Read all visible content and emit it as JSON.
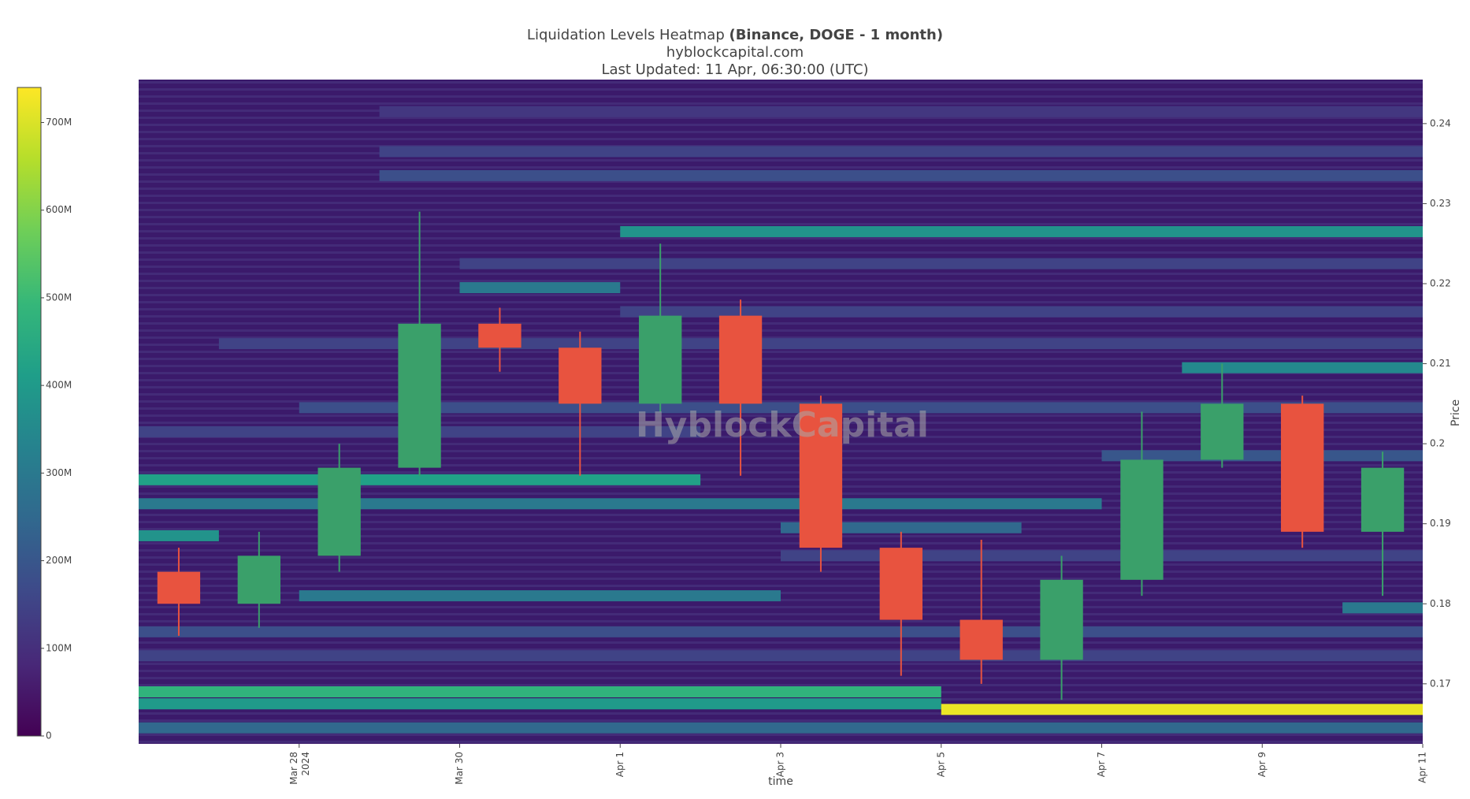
{
  "chart_data": {
    "type": "heatmap",
    "title": "Liquidation Levels Heatmap",
    "title_bold": "(Binance, DOGE - 1 month)",
    "subtitle": "hyblockcapital.com",
    "updated": "Last Updated: 11 Apr, 06:30:00 (UTC)",
    "watermark": "HyblockCapital",
    "x_label": "time",
    "y_label": "Price",
    "xlim": [
      "2024-03-26",
      "2024-04-11"
    ],
    "xticks": [
      {
        "value": "2024-03-28",
        "label": "Mar 28 2024"
      },
      {
        "value": "2024-03-30",
        "label": "Mar 30"
      },
      {
        "value": "2024-04-01",
        "label": "Apr 1"
      },
      {
        "value": "2024-04-03",
        "label": "Apr 3"
      },
      {
        "value": "2024-04-05",
        "label": "Apr 5"
      },
      {
        "value": "2024-04-07",
        "label": "Apr 7"
      },
      {
        "value": "2024-04-09",
        "label": "Apr 9"
      },
      {
        "value": "2024-04-11",
        "label": "Apr 11"
      }
    ],
    "ylim": [
      0.1625,
      0.2455
    ],
    "yticks": [
      0.17,
      0.18,
      0.19,
      0.2,
      0.21,
      0.22,
      0.23,
      0.24
    ],
    "colorscale": [
      "#440154",
      "#482878",
      "#3e4989",
      "#31688e",
      "#26828e",
      "#1f9e89",
      "#35b779",
      "#6ece58",
      "#b5de2b",
      "#fde725"
    ],
    "clim": [
      0,
      740000000
    ],
    "cticks": [
      0,
      {
        "value": 100000000,
        "label": "100M"
      },
      {
        "value": 200000000,
        "label": "200M"
      },
      {
        "value": 300000000,
        "label": "300M"
      },
      {
        "value": 400000000,
        "label": "400M"
      },
      {
        "value": 500000000,
        "label": "500M"
      },
      {
        "value": 600000000,
        "label": "600M"
      },
      {
        "value": 700000000,
        "label": "700M"
      }
    ],
    "bands": [
      {
        "price": 0.2415,
        "start": "2024-03-29",
        "end": "2024-04-11",
        "value": 120000000
      },
      {
        "price": 0.2365,
        "start": "2024-03-29",
        "end": "2024-04-11",
        "value": 150000000
      },
      {
        "price": 0.2335,
        "start": "2024-03-29",
        "end": "2024-04-11",
        "value": 180000000
      },
      {
        "price": 0.2265,
        "start": "2024-04-01",
        "end": "2024-04-11",
        "value": 380000000
      },
      {
        "price": 0.2225,
        "start": "2024-03-30",
        "end": "2024-04-11",
        "value": 150000000
      },
      {
        "price": 0.2195,
        "start": "2024-03-30",
        "end": "2024-04-01",
        "value": 300000000
      },
      {
        "price": 0.2165,
        "start": "2024-04-01",
        "end": "2024-04-11",
        "value": 150000000
      },
      {
        "price": 0.2125,
        "start": "2024-03-27",
        "end": "2024-04-11",
        "value": 150000000
      },
      {
        "price": 0.2095,
        "start": "2024-04-08",
        "end": "2024-04-11",
        "value": 350000000
      },
      {
        "price": 0.2045,
        "start": "2024-03-28",
        "end": "2024-04-11",
        "value": 180000000
      },
      {
        "price": 0.2015,
        "start": "2024-03-26",
        "end": "2024-04-02",
        "value": 150000000
      },
      {
        "price": 0.1985,
        "start": "2024-04-07",
        "end": "2024-04-11",
        "value": 200000000
      },
      {
        "price": 0.1955,
        "start": "2024-03-26",
        "end": "2024-04-02",
        "value": 420000000
      },
      {
        "price": 0.1925,
        "start": "2024-03-26",
        "end": "2024-04-07",
        "value": 300000000
      },
      {
        "price": 0.1895,
        "start": "2024-04-03",
        "end": "2024-04-06",
        "value": 250000000
      },
      {
        "price": 0.1885,
        "start": "2024-03-26",
        "end": "2024-03-27",
        "value": 380000000
      },
      {
        "price": 0.186,
        "start": "2024-04-03",
        "end": "2024-04-11",
        "value": 150000000
      },
      {
        "price": 0.181,
        "start": "2024-03-28",
        "end": "2024-04-03",
        "value": 300000000
      },
      {
        "price": 0.1795,
        "start": "2024-04-10",
        "end": "2024-04-11",
        "value": 300000000
      },
      {
        "price": 0.1765,
        "start": "2024-03-26",
        "end": "2024-04-11",
        "value": 180000000
      },
      {
        "price": 0.1735,
        "start": "2024-03-26",
        "end": "2024-04-11",
        "value": 150000000
      },
      {
        "price": 0.169,
        "start": "2024-03-26",
        "end": "2024-04-05",
        "value": 480000000
      },
      {
        "price": 0.1675,
        "start": "2024-03-26",
        "end": "2024-04-05",
        "value": 400000000
      },
      {
        "price": 0.1668,
        "start": "2024-04-05",
        "end": "2024-04-11",
        "value": 720000000
      },
      {
        "price": 0.1645,
        "start": "2024-03-26",
        "end": "2024-04-11",
        "value": 250000000
      }
    ],
    "up_color": "#3aa06a",
    "down_color": "#e8533f",
    "candles": {
      "x": [
        "2024-03-26",
        "2024-03-27",
        "2024-03-28",
        "2024-03-29",
        "2024-03-30",
        "2024-03-31",
        "2024-04-01",
        "2024-04-02",
        "2024-04-03",
        "2024-04-04",
        "2024-04-05",
        "2024-04-06",
        "2024-04-07",
        "2024-04-08",
        "2024-04-09",
        "2024-04-10"
      ],
      "open": [
        0.184,
        0.18,
        0.186,
        0.197,
        0.215,
        0.212,
        0.205,
        0.216,
        0.205,
        0.187,
        0.178,
        0.173,
        0.183,
        0.198,
        0.205,
        0.189
      ],
      "high": [
        0.187,
        0.189,
        0.2,
        0.229,
        0.217,
        0.214,
        0.225,
        0.218,
        0.206,
        0.189,
        0.188,
        0.186,
        0.204,
        0.21,
        0.206,
        0.199
      ],
      "low": [
        0.176,
        0.177,
        0.184,
        0.196,
        0.209,
        0.196,
        0.204,
        0.196,
        0.184,
        0.171,
        0.17,
        0.168,
        0.181,
        0.197,
        0.187,
        0.181
      ],
      "close": [
        0.18,
        0.186,
        0.197,
        0.215,
        0.212,
        0.205,
        0.216,
        0.205,
        0.187,
        0.178,
        0.173,
        0.183,
        0.198,
        0.205,
        0.189,
        0.197
      ]
    }
  }
}
